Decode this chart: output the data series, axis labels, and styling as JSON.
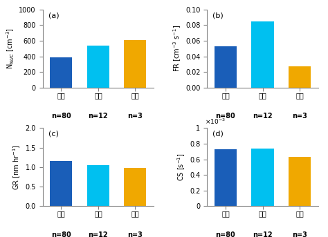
{
  "categories": [
    "해양",
    "해빙",
    "복합"
  ],
  "n_labels": [
    "n=80",
    "n=12",
    "n=3"
  ],
  "colors": [
    "#1a5eb8",
    "#00c0f0",
    "#f0a800"
  ],
  "panel_a": {
    "values": [
      385,
      535,
      605
    ],
    "ylabel": "N$_{NUC}$ [cm$^{-3}$]",
    "ylim": [
      0,
      1000
    ],
    "yticks": [
      0,
      200,
      400,
      600,
      800,
      1000
    ],
    "label": "(a)"
  },
  "panel_b": {
    "values": [
      0.053,
      0.085,
      0.027
    ],
    "ylabel": "FR [cm$^{-3}$ s$^{-1}$]",
    "ylim": [
      0,
      0.1
    ],
    "yticks": [
      0,
      0.02,
      0.04,
      0.06,
      0.08,
      0.1
    ],
    "label": "(b)"
  },
  "panel_c": {
    "values": [
      1.15,
      1.05,
      0.98
    ],
    "ylabel": "GR [nm hr$^{-1}$]",
    "ylim": [
      0,
      2
    ],
    "yticks": [
      0,
      0.5,
      1.0,
      1.5,
      2.0
    ],
    "label": "(c)"
  },
  "panel_d": {
    "values": [
      0.00073,
      0.00074,
      0.00063
    ],
    "ylabel": "CS [s$^{-1}$]",
    "ylim": [
      0,
      0.001
    ],
    "yticks": [
      0,
      0.0002,
      0.0004,
      0.0006,
      0.0008,
      0.001
    ],
    "label": "(d)",
    "sci_label": "$\\times10^{-3}$"
  }
}
